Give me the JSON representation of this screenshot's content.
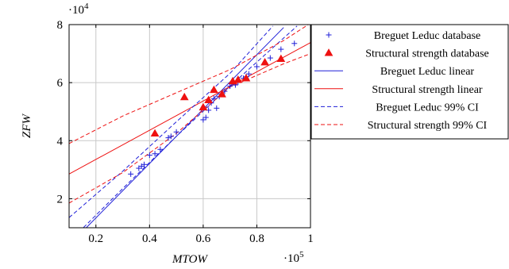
{
  "chart_data": {
    "type": "scatter",
    "xlabel": "MTOW",
    "ylabel": "ZFW",
    "x_multiplier": "·10^5",
    "y_multiplier": "·10^4",
    "x_multiplier_base": "·10",
    "x_multiplier_exp": "5",
    "y_multiplier_base": "·10",
    "y_multiplier_exp": "4",
    "xlim": [
      0.1,
      1.0
    ],
    "ylim": [
      1.0,
      8.0
    ],
    "x_ticks": [
      0.2,
      0.4,
      0.6,
      0.8,
      1.0
    ],
    "x_tick_labels": [
      "0.2",
      "0.4",
      "0.6",
      "0.8",
      "1"
    ],
    "y_ticks": [
      2,
      4,
      6,
      8
    ],
    "y_tick_labels": [
      "2",
      "4",
      "6",
      "8"
    ],
    "grid": true,
    "legend_position": "right",
    "series": [
      {
        "name": "Breguet Leduc database",
        "kind": "marker",
        "marker": "plus",
        "color": "#1f1fd8",
        "points": [
          [
            0.33,
            2.85
          ],
          [
            0.36,
            3.05
          ],
          [
            0.37,
            3.12
          ],
          [
            0.38,
            3.18
          ],
          [
            0.4,
            3.5
          ],
          [
            0.42,
            3.55
          ],
          [
            0.44,
            3.7
          ],
          [
            0.47,
            4.1
          ],
          [
            0.48,
            4.15
          ],
          [
            0.5,
            4.3
          ],
          [
            0.6,
            4.72
          ],
          [
            0.61,
            4.8
          ],
          [
            0.62,
            5.05
          ],
          [
            0.63,
            5.3
          ],
          [
            0.64,
            5.45
          ],
          [
            0.65,
            5.12
          ],
          [
            0.66,
            5.52
          ],
          [
            0.68,
            5.7
          ],
          [
            0.7,
            5.88
          ],
          [
            0.71,
            6.0
          ],
          [
            0.72,
            5.92
          ],
          [
            0.73,
            6.02
          ],
          [
            0.75,
            6.15
          ],
          [
            0.76,
            6.2
          ],
          [
            0.77,
            6.3
          ],
          [
            0.8,
            6.55
          ],
          [
            0.85,
            6.85
          ],
          [
            0.89,
            7.15
          ],
          [
            0.94,
            7.35
          ]
        ]
      },
      {
        "name": "Structural strength database",
        "kind": "marker",
        "marker": "triangle",
        "color": "#ee1111",
        "points": [
          [
            0.42,
            4.25
          ],
          [
            0.53,
            5.5
          ],
          [
            0.6,
            5.15
          ],
          [
            0.62,
            5.4
          ],
          [
            0.64,
            5.75
          ],
          [
            0.67,
            5.6
          ],
          [
            0.71,
            6.05
          ],
          [
            0.73,
            6.1
          ],
          [
            0.76,
            6.15
          ],
          [
            0.83,
            6.7
          ],
          [
            0.89,
            6.82
          ]
        ]
      },
      {
        "name": "Breguet Leduc linear",
        "kind": "line",
        "style": "solid",
        "color": "#1f1fd8",
        "points": [
          [
            0.1,
            0.4
          ],
          [
            0.9,
            7.9
          ]
        ]
      },
      {
        "name": "Structural strength linear",
        "kind": "line",
        "style": "solid",
        "color": "#ee1111",
        "points": [
          [
            0.1,
            2.85
          ],
          [
            1.0,
            7.38
          ]
        ]
      },
      {
        "name": "Breguet Leduc 99% CI",
        "kind": "line",
        "style": "dashed",
        "color": "#1f1fd8",
        "points": [
          [
            0.1,
            1.35
          ],
          [
            0.3,
            2.95
          ],
          [
            0.5,
            4.65
          ],
          [
            0.7,
            6.32
          ],
          [
            0.86,
            7.95
          ]
        ],
        "points_lower": [
          [
            0.12,
            0.7
          ],
          [
            0.3,
            2.35
          ],
          [
            0.5,
            4.15
          ],
          [
            0.7,
            5.88
          ],
          [
            0.95,
            7.95
          ]
        ]
      },
      {
        "name": "Structural strength 99% CI",
        "kind": "line",
        "style": "dashed",
        "color": "#ee1111",
        "points": [
          [
            0.1,
            3.9
          ],
          [
            0.3,
            4.85
          ],
          [
            0.5,
            5.65
          ],
          [
            0.7,
            6.45
          ],
          [
            0.9,
            7.45
          ],
          [
            1.0,
            8.05
          ]
        ],
        "points_lower": [
          [
            0.1,
            1.85
          ],
          [
            0.3,
            2.9
          ],
          [
            0.5,
            4.25
          ],
          [
            0.7,
            5.85
          ],
          [
            0.9,
            6.65
          ],
          [
            1.0,
            7.0
          ]
        ]
      }
    ]
  }
}
